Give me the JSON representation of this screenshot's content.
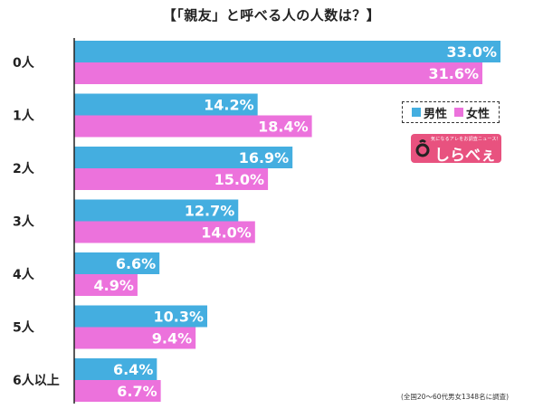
{
  "title": "【「親友」と呼べる人の人数は？】",
  "legend": {
    "male": "男性",
    "female": "女性"
  },
  "colors": {
    "male": "#44aee0",
    "female": "#ec72dc",
    "grid": "#222222"
  },
  "logo": {
    "tagline": "気になるアレをお調査ニュース！",
    "name": "しらべぇ"
  },
  "note": "(全国20〜60代男女1348名に調査)",
  "chart_data": {
    "type": "bar",
    "orientation": "horizontal",
    "title": "【「親友」と呼べる人の人数は？】",
    "categories": [
      "0人",
      "1人",
      "2人",
      "3人",
      "4人",
      "5人",
      "6人以上"
    ],
    "series": [
      {
        "name": "男性",
        "values": [
          33.0,
          14.2,
          16.9,
          12.7,
          6.6,
          10.3,
          6.4
        ],
        "labels": [
          "33.0%",
          "14.2%",
          "16.9%",
          "12.7%",
          "6.6%",
          "10.3%",
          "6.4%"
        ]
      },
      {
        "name": "女性",
        "values": [
          31.6,
          18.4,
          15.0,
          14.0,
          4.9,
          9.4,
          6.7
        ],
        "labels": [
          "31.6%",
          "18.4%",
          "15.0%",
          "14.0%",
          "4.9%",
          "9.4%",
          "6.7%"
        ]
      }
    ],
    "xlim": [
      0,
      33.0
    ],
    "grid": false,
    "legend_position": "right"
  }
}
